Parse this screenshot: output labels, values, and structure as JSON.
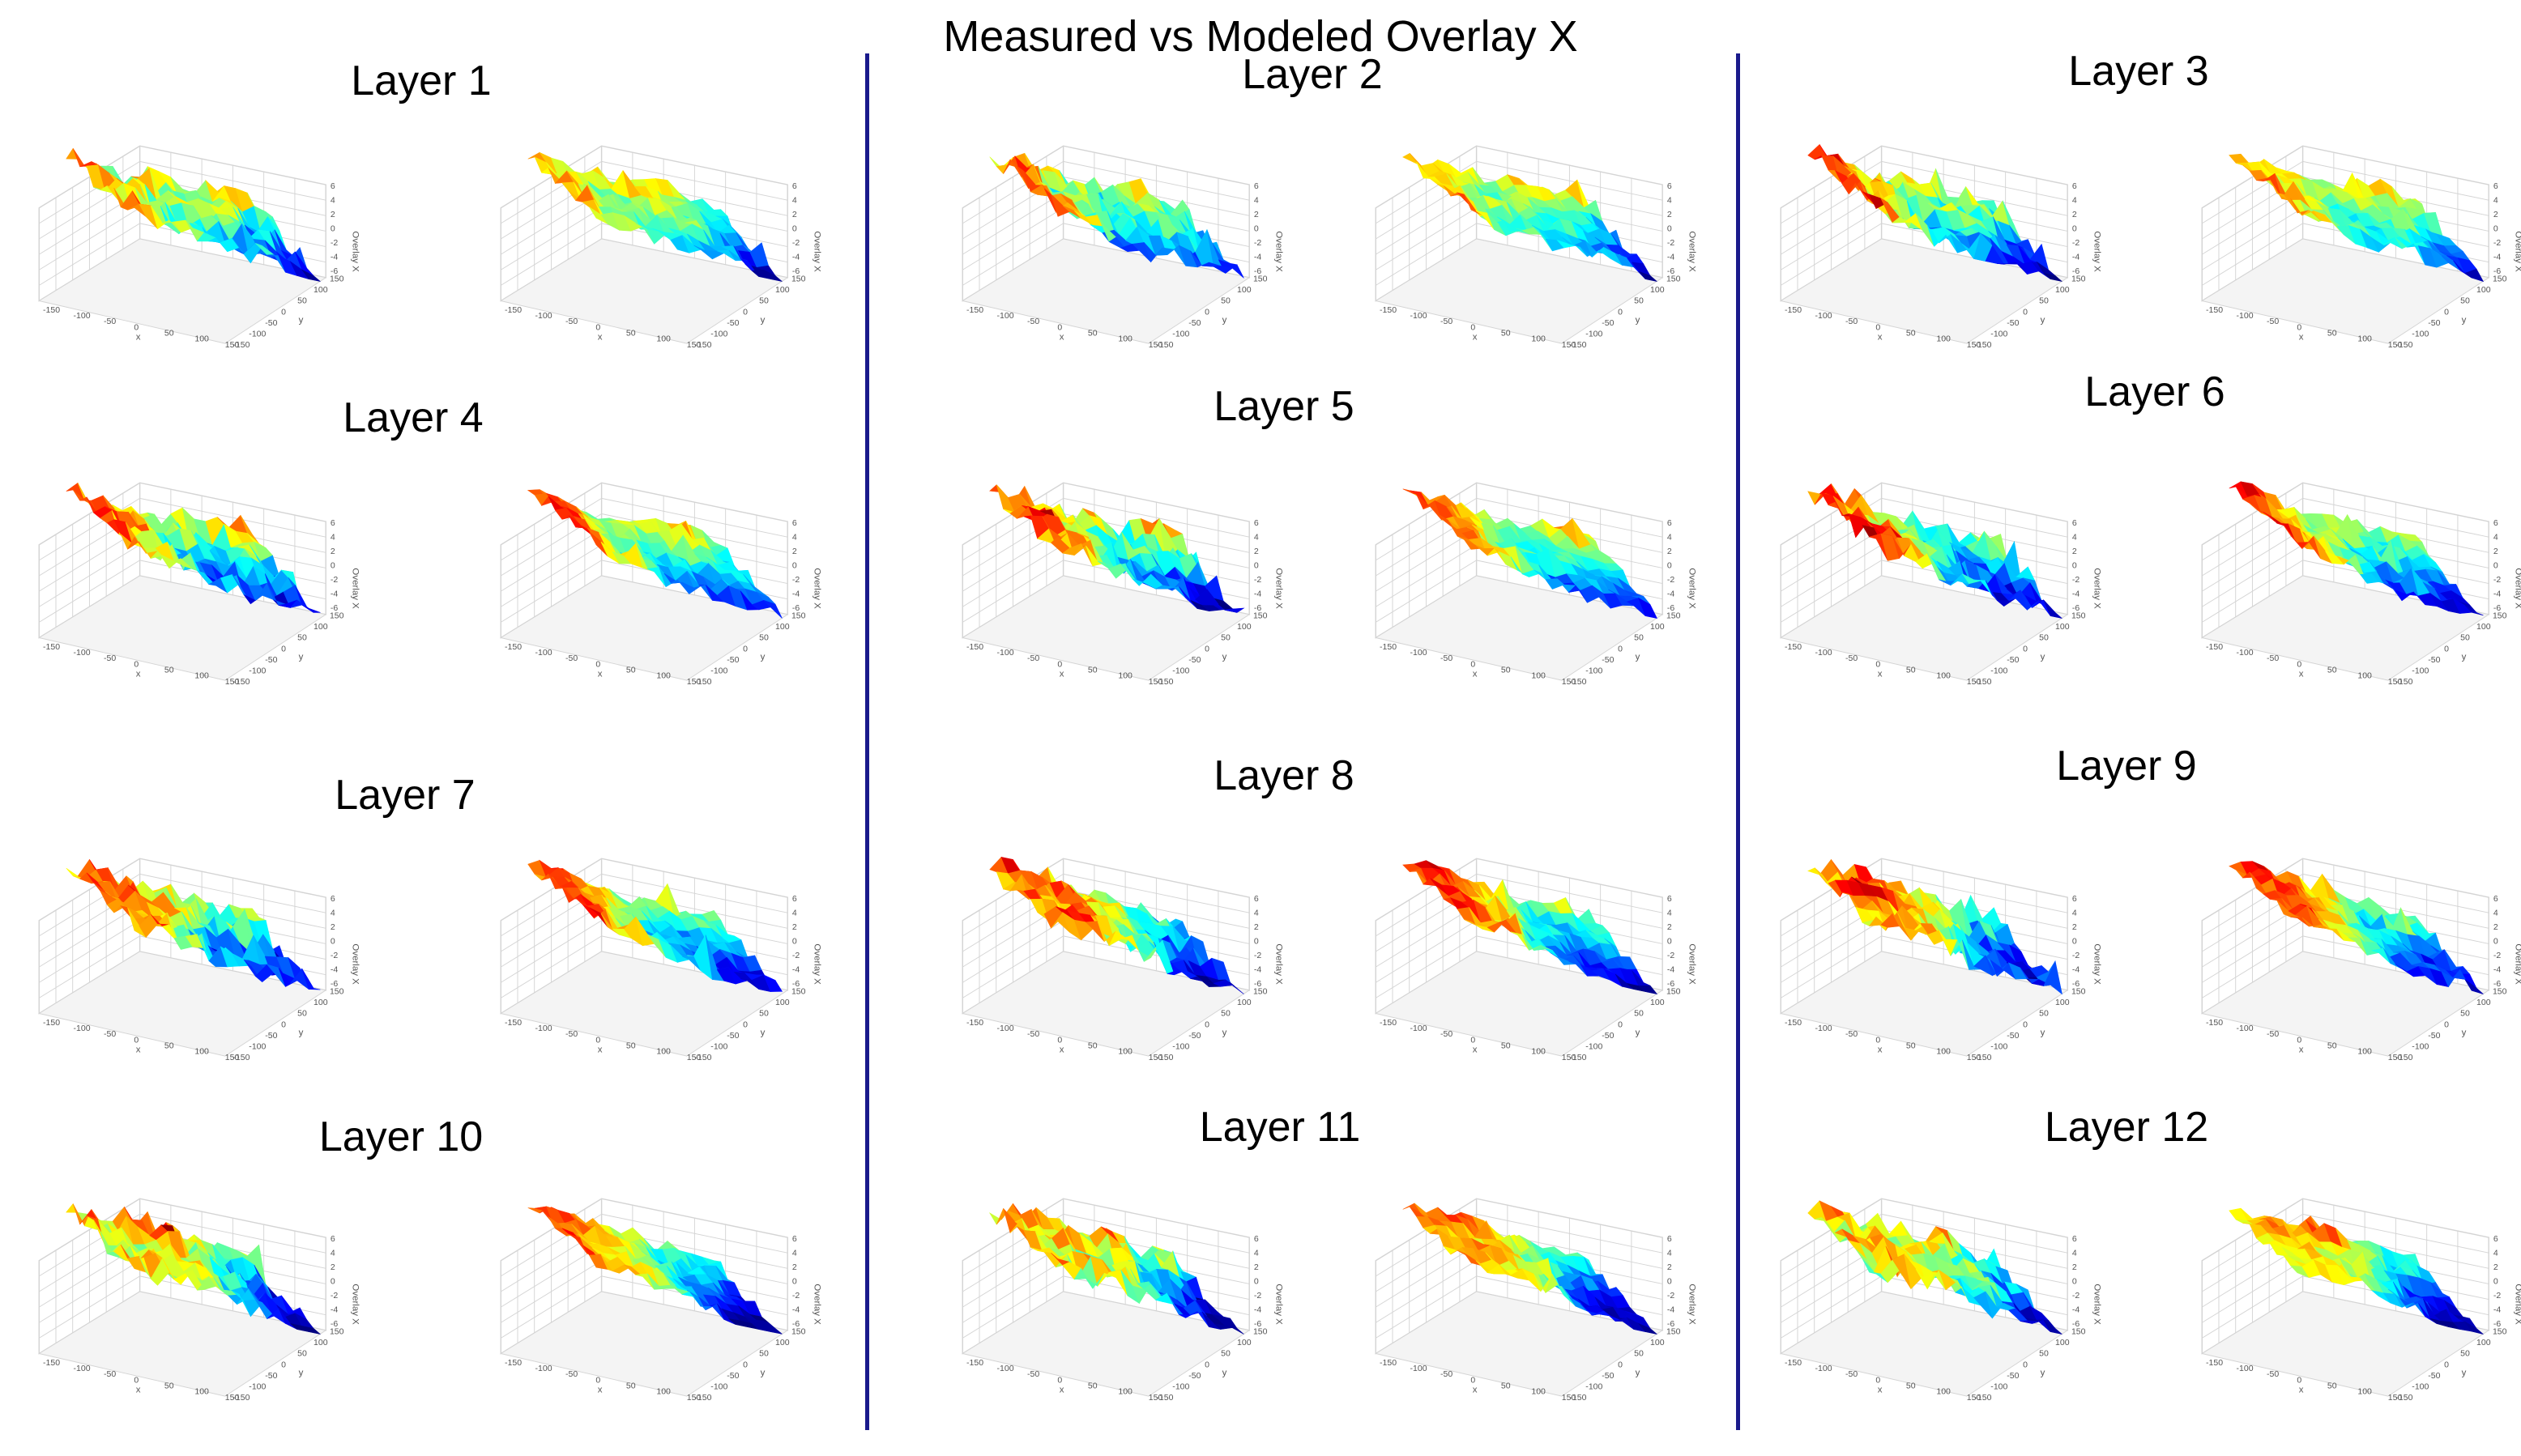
{
  "figure": {
    "title": "Measured vs Modeled Overlay X",
    "colors": {
      "divider": "#1a1a8c",
      "grid": "#d4d4d4"
    },
    "colormap": "jet"
  },
  "chart_data": {
    "type": "surface3d",
    "description_of_layout": "columns",
    "axis_labels": {
      "x": "x",
      "y": "y",
      "z": "Overlay X"
    },
    "x_ticks": [
      "-150",
      "-100",
      "-50",
      "0",
      "50",
      "100",
      "150"
    ],
    "y_ticks": [
      "-150",
      "-100",
      "-50",
      "0",
      "50",
      "100",
      "150"
    ],
    "z_ticks": [
      "-6",
      "-4",
      "-2",
      "0",
      "2",
      "4",
      "6"
    ],
    "layers": [
      {
        "label": "Layer 1",
        "panels": [
          "measured",
          "modeled"
        ]
      },
      {
        "label": "Layer 2",
        "panels": [
          "measured",
          "modeled"
        ]
      },
      {
        "label": "Layer 3",
        "panels": [
          "measured",
          "modeled"
        ]
      },
      {
        "label": "Layer 4",
        "panels": [
          "measured",
          "modeled"
        ]
      },
      {
        "label": "Layer 5",
        "panels": [
          "measured",
          "modeled"
        ]
      },
      {
        "label": "Layer 6",
        "panels": [
          "measured",
          "modeled"
        ]
      },
      {
        "label": "Layer 7",
        "panels": [
          "measured",
          "modeled"
        ]
      },
      {
        "label": "Layer 8",
        "panels": [
          "measured",
          "modeled"
        ]
      },
      {
        "label": "Layer 9",
        "panels": [
          "measured",
          "modeled"
        ]
      },
      {
        "label": "Layer 10",
        "panels": [
          "measured",
          "modeled"
        ]
      },
      {
        "label": "Layer 11",
        "panels": [
          "measured",
          "modeled"
        ]
      },
      {
        "label": "Layer 12",
        "panels": [
          "measured",
          "modeled"
        ]
      }
    ]
  }
}
